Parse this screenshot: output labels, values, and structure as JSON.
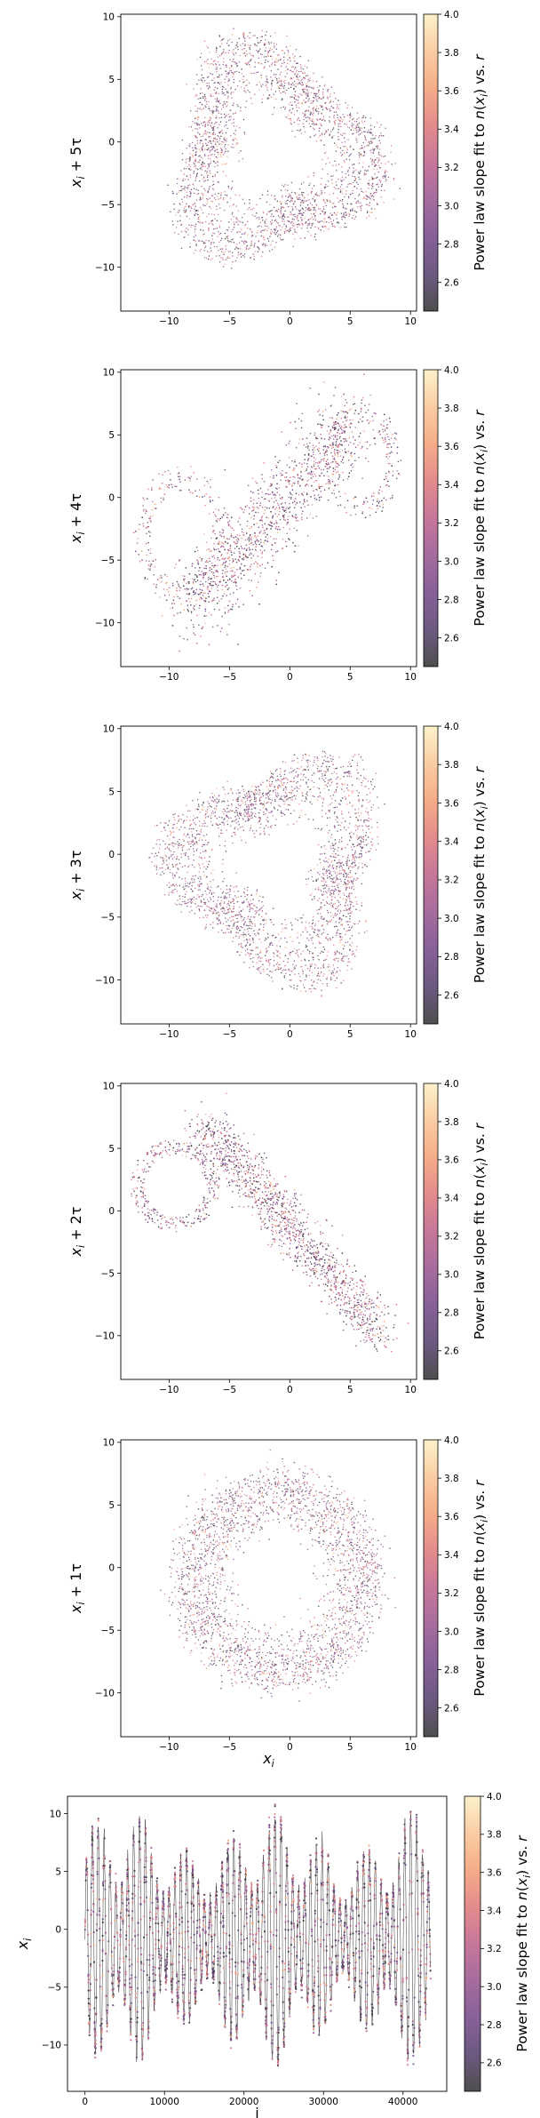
{
  "colorbar_label": "Power law slope fit to n(x_i) vs. r",
  "colorbar_ticks": [
    2.6,
    2.8,
    3.0,
    3.2,
    3.4,
    3.6,
    3.8,
    4.0
  ],
  "colorbar_range": [
    2.45,
    4.0
  ],
  "colormap": [
    "#3b3b3b",
    "#5c4773",
    "#7a4f8e",
    "#9c5c93",
    "#c0688f",
    "#e07f80",
    "#f4a37c",
    "#fac79a",
    "#fcf1c5"
  ],
  "chart_data": [
    {
      "type": "scatter",
      "ylabel": "x_i + 5τ",
      "xlabel": "",
      "xlim": [
        -14,
        10.5
      ],
      "ylim": [
        -13.5,
        10.2
      ],
      "xticks": [
        -10,
        -5,
        0,
        5,
        10
      ],
      "yticks": [
        -10,
        -5,
        0,
        5,
        10
      ],
      "shape": {
        "kind": "tri",
        "center": [
          -1.5,
          -1
        ],
        "radius": 8.2,
        "rotation": 0.2,
        "points": 2600
      }
    },
    {
      "type": "scatter",
      "ylabel": "x_i + 4τ",
      "xlabel": "",
      "xlim": [
        -14,
        10.5
      ],
      "ylim": [
        -13.5,
        10.2
      ],
      "xticks": [
        -10,
        -5,
        0,
        5,
        10
      ],
      "yticks": [
        -10,
        -5,
        0,
        5,
        10
      ],
      "shape": {
        "kind": "band",
        "from": [
          -8,
          -9
        ],
        "to": [
          5,
          6
        ],
        "points": 2600
      }
    },
    {
      "type": "scatter",
      "ylabel": "x_i + 3τ",
      "xlabel": "",
      "xlim": [
        -14,
        10.5
      ],
      "ylim": [
        -13.5,
        10.2
      ],
      "xticks": [
        -10,
        -5,
        0,
        5,
        10
      ],
      "yticks": [
        -10,
        -5,
        0,
        5,
        10
      ],
      "shape": {
        "kind": "tri",
        "center": [
          -1,
          -1
        ],
        "radius": 8.4,
        "rotation": 3.3,
        "points": 2600
      }
    },
    {
      "type": "scatter",
      "ylabel": "x_i + 2τ",
      "xlabel": "",
      "xlim": [
        -14,
        10.5
      ],
      "ylim": [
        -13.5,
        10.2
      ],
      "xticks": [
        -10,
        -5,
        0,
        5,
        10
      ],
      "yticks": [
        -10,
        -5,
        0,
        5,
        10
      ],
      "shape": {
        "kind": "diag",
        "from": [
          -7,
          7
        ],
        "to": [
          7.5,
          -10
        ],
        "points": 2600
      }
    },
    {
      "type": "scatter",
      "ylabel": "x_i + 1τ",
      "xlabel": "x_i",
      "xlim": [
        -14,
        10.5
      ],
      "ylim": [
        -13.5,
        10.2
      ],
      "xticks": [
        -10,
        -5,
        0,
        5,
        10
      ],
      "yticks": [
        -10,
        -5,
        0,
        5,
        10
      ],
      "shape": {
        "kind": "ring",
        "center": [
          -1,
          -1
        ],
        "radius": 8.5,
        "points": 2600
      }
    },
    {
      "type": "line",
      "ylabel": "x_i",
      "xlabel": "i",
      "xlim": [
        -2200,
        45500
      ],
      "ylim": [
        -14,
        11.5
      ],
      "xticks": [
        0,
        10000,
        20000,
        30000,
        40000
      ],
      "yticks": [
        -10,
        -5,
        0,
        5,
        10
      ],
      "series_length": 43500
    }
  ]
}
